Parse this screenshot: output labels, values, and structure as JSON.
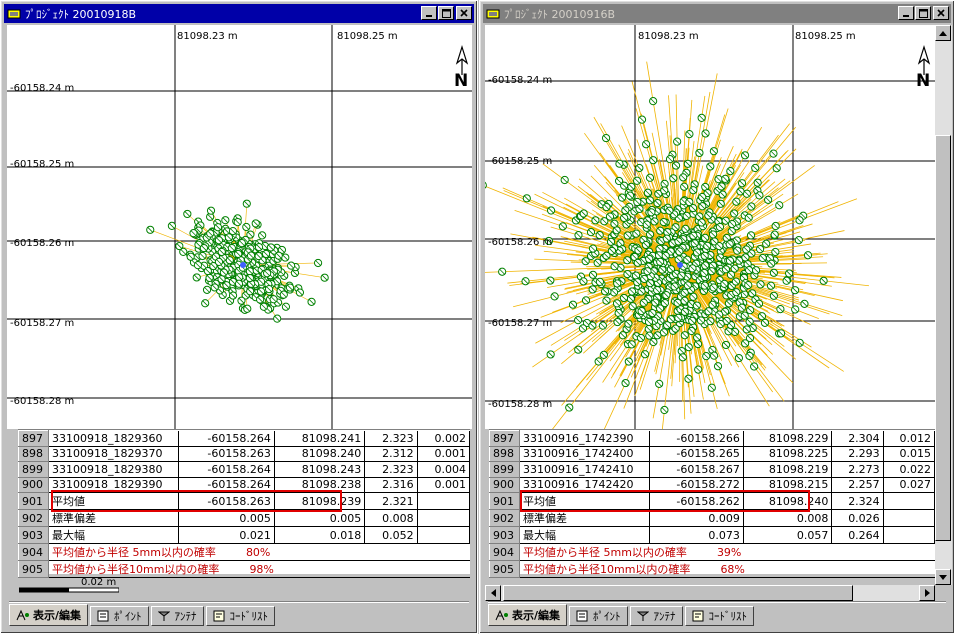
{
  "left": {
    "title": "ﾌﾟﾛｼﾞｪｸﾄ 20010918B",
    "x_labels": [
      "81098.23 m",
      "81098.25 m"
    ],
    "y_labels": [
      "-60158.24 m",
      "-60158.25 m",
      "-60158.26 m",
      "-60158.27 m",
      "-60158.28 m"
    ],
    "north_label": "N",
    "rows": [
      {
        "no": "897",
        "id": "33100918_1829360",
        "y": "-60158.264",
        "x": "81098.241",
        "h": "2.323",
        "d": "0.002"
      },
      {
        "no": "898",
        "id": "33100918_1829370",
        "y": "-60158.263",
        "x": "81098.240",
        "h": "2.312",
        "d": "0.001"
      },
      {
        "no": "899",
        "id": "33100918_1829380",
        "y": "-60158.264",
        "x": "81098.243",
        "h": "2.323",
        "d": "0.004"
      },
      {
        "no": "900",
        "id": "33100918_1829390",
        "y": "-60158.264",
        "x": "81098.238",
        "h": "2.316",
        "d": "0.001"
      },
      {
        "no": "901",
        "id": "平均値",
        "y": "-60158.263",
        "x": "81098.239",
        "h": "2.321",
        "d": ""
      },
      {
        "no": "902",
        "id": "標準偏差",
        "y": "0.005",
        "x": "0.005",
        "h": "0.008",
        "d": ""
      },
      {
        "no": "903",
        "id": "最大幅",
        "y": "0.021",
        "x": "0.018",
        "h": "0.052",
        "d": ""
      }
    ],
    "prob_rows": [
      {
        "no": "904",
        "label": "平均値から半径 5mm以内の確率",
        "value": "80%"
      },
      {
        "no": "905",
        "label": "平均値から半径10mm以内の確率",
        "value": "98%"
      }
    ],
    "scale_label": "0.02 m"
  },
  "right": {
    "title": "ﾌﾟﾛｼﾞｪｸﾄ 20010916B",
    "x_labels": [
      "81098.23 m",
      "81098.25 m"
    ],
    "y_labels": [
      "-60158.24 m",
      "-60158.25 m",
      "-60158.26 m",
      "-60158.27 m",
      "-60158.28 m"
    ],
    "north_label": "N",
    "rows": [
      {
        "no": "897",
        "id": "33100916_1742390",
        "y": "-60158.266",
        "x": "81098.229",
        "h": "2.304",
        "d": "0.012"
      },
      {
        "no": "898",
        "id": "33100916_1742400",
        "y": "-60158.265",
        "x": "81098.225",
        "h": "2.293",
        "d": "0.015"
      },
      {
        "no": "899",
        "id": "33100916_1742410",
        "y": "-60158.267",
        "x": "81098.219",
        "h": "2.273",
        "d": "0.022"
      },
      {
        "no": "900",
        "id": "33100916_1742420",
        "y": "-60158.272",
        "x": "81098.215",
        "h": "2.257",
        "d": "0.027"
      },
      {
        "no": "901",
        "id": "平均値",
        "y": "-60158.262",
        "x": "81098.240",
        "h": "2.324",
        "d": ""
      },
      {
        "no": "902",
        "id": "標準偏差",
        "y": "0.009",
        "x": "0.008",
        "h": "0.026",
        "d": ""
      },
      {
        "no": "903",
        "id": "最大幅",
        "y": "0.073",
        "x": "0.057",
        "h": "0.264",
        "d": ""
      }
    ],
    "prob_rows": [
      {
        "no": "904",
        "label": "平均値から半径 5mm以内の確率",
        "value": "39%"
      },
      {
        "no": "905",
        "label": "平均値から半径10mm以内の確率",
        "value": "68%"
      }
    ]
  },
  "tabs": [
    "表示/編集",
    "ﾎﾟｲﾝﾄ",
    "ｱﾝﾃﾅ",
    "ｺｰﾄﾞﾘｽﾄ"
  ],
  "colors": {
    "point": "#008000",
    "vector": "#f0b400",
    "highlight": "#e00000",
    "prob_text": "#c00000"
  }
}
